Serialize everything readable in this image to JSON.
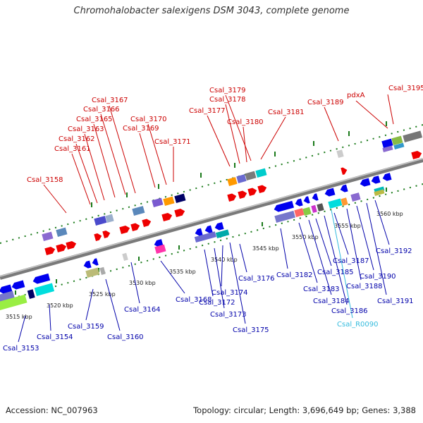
{
  "title": "Chromohalobacter salexigens DSM 3043, complete genome",
  "footer": {
    "accession": "Accession: NC_007963",
    "info": "Topology: circular; Length: 3,696,649 bp; Genes: 3,388"
  },
  "colors": {
    "backbone": "#8c8c8c",
    "forward_label": "#cc0000",
    "reverse_label": "#0000aa",
    "rna_label": "#33bbdd",
    "tick": "#1a7a1a"
  },
  "ticks": [
    "3515 kbp",
    "3520 kbp",
    "3525 kbp",
    "3530 kbp",
    "3535 kbp",
    "3540 kbp",
    "3545 kbp",
    "3550 kbp",
    "3555 kbp",
    "3560 kbp"
  ],
  "forward_genes": [
    "Csal_3158",
    "Csal_3161",
    "Csal_3162",
    "Csal_3163",
    "Csal_3165",
    "Csal_3166",
    "Csal_3167",
    "Csal_3169",
    "Csal_3170",
    "Csal_3171",
    "Csal_3177",
    "Csal_3178",
    "Csal_3179",
    "Csal_3180",
    "Csal_3181",
    "Csal_3189",
    "pdxA",
    "Csal_3195"
  ],
  "reverse_genes": [
    "Csal_3153",
    "Csal_3154",
    "Csal_3159",
    "Csal_3160",
    "Csal_3164",
    "Csal_3168",
    "Csal_3172",
    "Csal_3173",
    "Csal_3174",
    "Csal_3175",
    "Csal_3176",
    "Csal_3182",
    "Csal_3183",
    "Csal_3184",
    "Csal_3185",
    "Csal_3186",
    "Csal_3187",
    "Csal_3188",
    "Csal_3190",
    "Csal_3191",
    "Csal_3192"
  ],
  "rna_genes": [
    "Csal_R0090"
  ]
}
